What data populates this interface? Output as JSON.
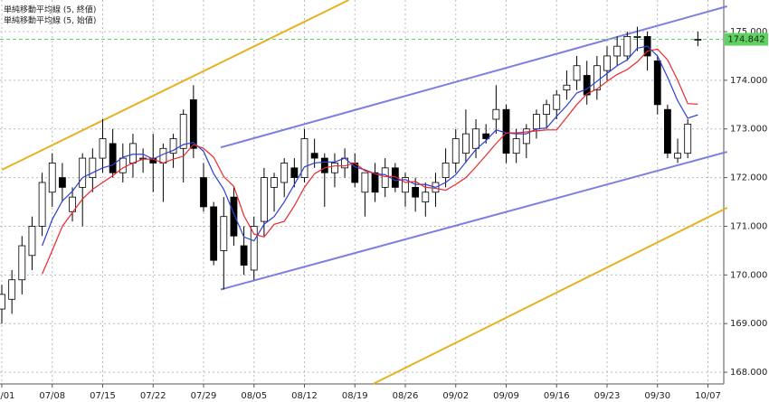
{
  "chart_data": {
    "type": "candlestick",
    "categories": [
      "07/01",
      null,
      null,
      null,
      null,
      "07/08",
      null,
      null,
      null,
      null,
      "07/15",
      null,
      null,
      null,
      null,
      "07/22",
      null,
      null,
      null,
      null,
      "07/29",
      null,
      null,
      null,
      null,
      "08/05",
      null,
      null,
      null,
      null,
      "08/12",
      null,
      null,
      null,
      null,
      "08/19",
      null,
      null,
      null,
      null,
      "08/26",
      null,
      null,
      null,
      null,
      "09/02",
      null,
      null,
      null,
      null,
      "09/09",
      null,
      null,
      null,
      null,
      "09/16",
      null,
      null,
      null,
      null,
      "09/23",
      null,
      null,
      null,
      null,
      "09/30",
      null,
      null,
      null,
      null,
      "10/07"
    ],
    "open": [
      169.3,
      169.5,
      169.9,
      170.4,
      171.0,
      171.7,
      172.0,
      171.3,
      171.8,
      172.0,
      172.4,
      172.7,
      172.1,
      172.3,
      172.4,
      172.4,
      172.3,
      172.5,
      172.6,
      173.6,
      172.0,
      171.4,
      170.5,
      171.6,
      170.6,
      170.1,
      171.1,
      171.8,
      171.9,
      172.2,
      172.0,
      172.5,
      172.4,
      172.1,
      172.2,
      172.3,
      171.7,
      172.1,
      171.8,
      172.2,
      171.7,
      171.8,
      171.5,
      171.7,
      172.0,
      172.3,
      172.5,
      172.6,
      172.9,
      173.2,
      173.4,
      172.5,
      172.7,
      173.0,
      173.3,
      173.4,
      173.8,
      174.0,
      174.1,
      173.8,
      174.2,
      174.5,
      174.5,
      174.9,
      174.9,
      174.4,
      173.4,
      172.4,
      172.5,
      174.83,
      null
    ],
    "high": [
      169.8,
      170.1,
      170.8,
      171.2,
      172.1,
      172.5,
      172.3,
      171.8,
      172.5,
      172.6,
      173.2,
      173.0,
      172.7,
      172.9,
      172.6,
      172.9,
      172.7,
      172.9,
      173.4,
      173.9,
      172.3,
      171.5,
      171.6,
      171.8,
      171.0,
      171.2,
      172.2,
      172.1,
      172.4,
      172.4,
      173.0,
      172.8,
      172.5,
      172.5,
      172.6,
      172.5,
      172.1,
      172.3,
      172.4,
      172.3,
      172.1,
      172.0,
      171.9,
      172.1,
      172.6,
      173.0,
      173.4,
      173.2,
      173.1,
      173.9,
      173.5,
      173.0,
      173.1,
      173.4,
      173.6,
      173.8,
      174.2,
      174.5,
      174.4,
      174.5,
      174.7,
      174.9,
      175.0,
      175.1,
      175.0,
      174.5,
      173.5,
      172.8,
      173.2,
      175.0,
      null
    ],
    "low": [
      169.0,
      169.2,
      169.6,
      170.1,
      170.8,
      171.4,
      171.5,
      171.1,
      171.0,
      171.7,
      172.1,
      172.0,
      171.9,
      172.0,
      172.1,
      171.7,
      171.5,
      172.2,
      171.9,
      172.4,
      171.3,
      170.2,
      169.7,
      170.6,
      170.0,
      169.9,
      170.8,
      171.3,
      171.6,
      171.8,
      171.9,
      172.2,
      171.4,
      171.8,
      172.0,
      171.8,
      171.2,
      171.5,
      171.6,
      171.7,
      171.4,
      171.3,
      171.2,
      171.4,
      171.8,
      172.1,
      172.3,
      172.4,
      172.7,
      172.9,
      172.3,
      172.3,
      172.4,
      172.8,
      173.0,
      173.2,
      173.6,
      173.8,
      173.5,
      173.6,
      174.0,
      174.3,
      174.4,
      174.6,
      174.2,
      173.3,
      172.4,
      172.3,
      172.4,
      174.7,
      null
    ],
    "close": [
      169.6,
      169.9,
      170.6,
      171.0,
      171.9,
      172.3,
      171.8,
      171.6,
      172.4,
      172.4,
      172.8,
      172.1,
      172.4,
      172.7,
      172.4,
      172.3,
      172.6,
      172.8,
      173.3,
      172.6,
      171.4,
      170.3,
      171.2,
      170.8,
      170.2,
      171.0,
      172.0,
      172.0,
      172.3,
      172.0,
      172.8,
      172.4,
      172.1,
      172.3,
      172.4,
      171.9,
      172.1,
      171.7,
      172.2,
      171.8,
      172.0,
      171.6,
      171.7,
      171.9,
      172.3,
      172.8,
      172.9,
      173.0,
      172.8,
      173.4,
      172.5,
      172.8,
      173.0,
      173.3,
      173.5,
      173.7,
      173.9,
      174.3,
      173.7,
      174.3,
      174.5,
      174.7,
      174.9,
      174.9,
      174.5,
      173.5,
      172.5,
      172.5,
      173.1,
      174.842,
      null
    ],
    "up_color": "#ffffff",
    "down_color": "#000000",
    "edge_color": "#000000",
    "series": [
      {
        "name": "単純移動平均線 (5, 終値)",
        "color": "#2c3fd6",
        "values": [
          null,
          null,
          null,
          null,
          170.6,
          171.14,
          171.52,
          171.72,
          172.0,
          172.1,
          172.2,
          172.26,
          172.42,
          172.48,
          172.48,
          172.38,
          172.48,
          172.56,
          172.68,
          172.72,
          172.54,
          172.08,
          171.76,
          171.26,
          170.78,
          170.7,
          171.04,
          171.2,
          171.5,
          171.86,
          172.22,
          172.3,
          172.32,
          172.32,
          172.4,
          172.22,
          172.16,
          172.08,
          172.06,
          171.94,
          171.96,
          171.86,
          171.86,
          171.8,
          171.9,
          172.06,
          172.32,
          172.58,
          172.76,
          172.98,
          172.92,
          172.9,
          172.9,
          173.0,
          173.02,
          173.26,
          173.48,
          173.74,
          173.82,
          173.98,
          174.14,
          174.3,
          174.42,
          174.66,
          174.7,
          174.5,
          174.06,
          173.58,
          173.22,
          173.29,
          null
        ]
      },
      {
        "name": "単純移動平均線 (5, 始値)",
        "color": "#e8282e",
        "values": [
          null,
          null,
          null,
          null,
          170.02,
          170.5,
          171.0,
          171.28,
          171.56,
          171.76,
          171.9,
          172.04,
          172.2,
          172.3,
          172.38,
          172.38,
          172.3,
          172.38,
          172.44,
          172.68,
          172.6,
          172.42,
          172.02,
          171.82,
          171.22,
          170.84,
          170.78,
          171.04,
          171.1,
          171.42,
          171.8,
          172.08,
          172.2,
          172.24,
          172.24,
          172.3,
          172.14,
          172.08,
          172.02,
          172.02,
          171.9,
          171.92,
          171.8,
          171.78,
          171.74,
          171.86,
          172.0,
          172.22,
          172.46,
          172.7,
          172.92,
          172.92,
          172.94,
          172.96,
          172.98,
          172.98,
          173.24,
          173.5,
          173.72,
          173.82,
          173.98,
          174.12,
          174.22,
          174.38,
          174.6,
          174.64,
          174.42,
          174.0,
          173.52,
          173.51,
          null
        ]
      }
    ],
    "trendlines": [
      {
        "color": "#7b7fe0",
        "x": [
          21.7,
          71.9
        ],
        "y": [
          172.62,
          175.52
        ]
      },
      {
        "color": "#7b7fe0",
        "x": [
          21.7,
          71.9
        ],
        "y": [
          169.7,
          172.53
        ]
      },
      {
        "color": "#e6b222",
        "x": [
          0,
          34.4
        ],
        "y": [
          172.16,
          175.65
        ]
      },
      {
        "color": "#e6b222",
        "x": [
          36.8,
          71.9
        ],
        "y": [
          167.76,
          171.38
        ]
      }
    ],
    "current_price": {
      "value": 174.842,
      "label": "174.842",
      "color": "#5fd35f"
    },
    "ylim": [
      167.76,
      175.65
    ],
    "yticks": [
      {
        "value": 168,
        "label": "168.000"
      },
      {
        "value": 169,
        "label": "169.000"
      },
      {
        "value": 170,
        "label": "170.000"
      },
      {
        "value": 171,
        "label": "171.000"
      },
      {
        "value": 172,
        "label": "172.000"
      },
      {
        "value": 173,
        "label": "173.000"
      },
      {
        "value": 174,
        "label": "174.000"
      },
      {
        "value": 175,
        "label": "175.000"
      }
    ],
    "grid": true
  }
}
